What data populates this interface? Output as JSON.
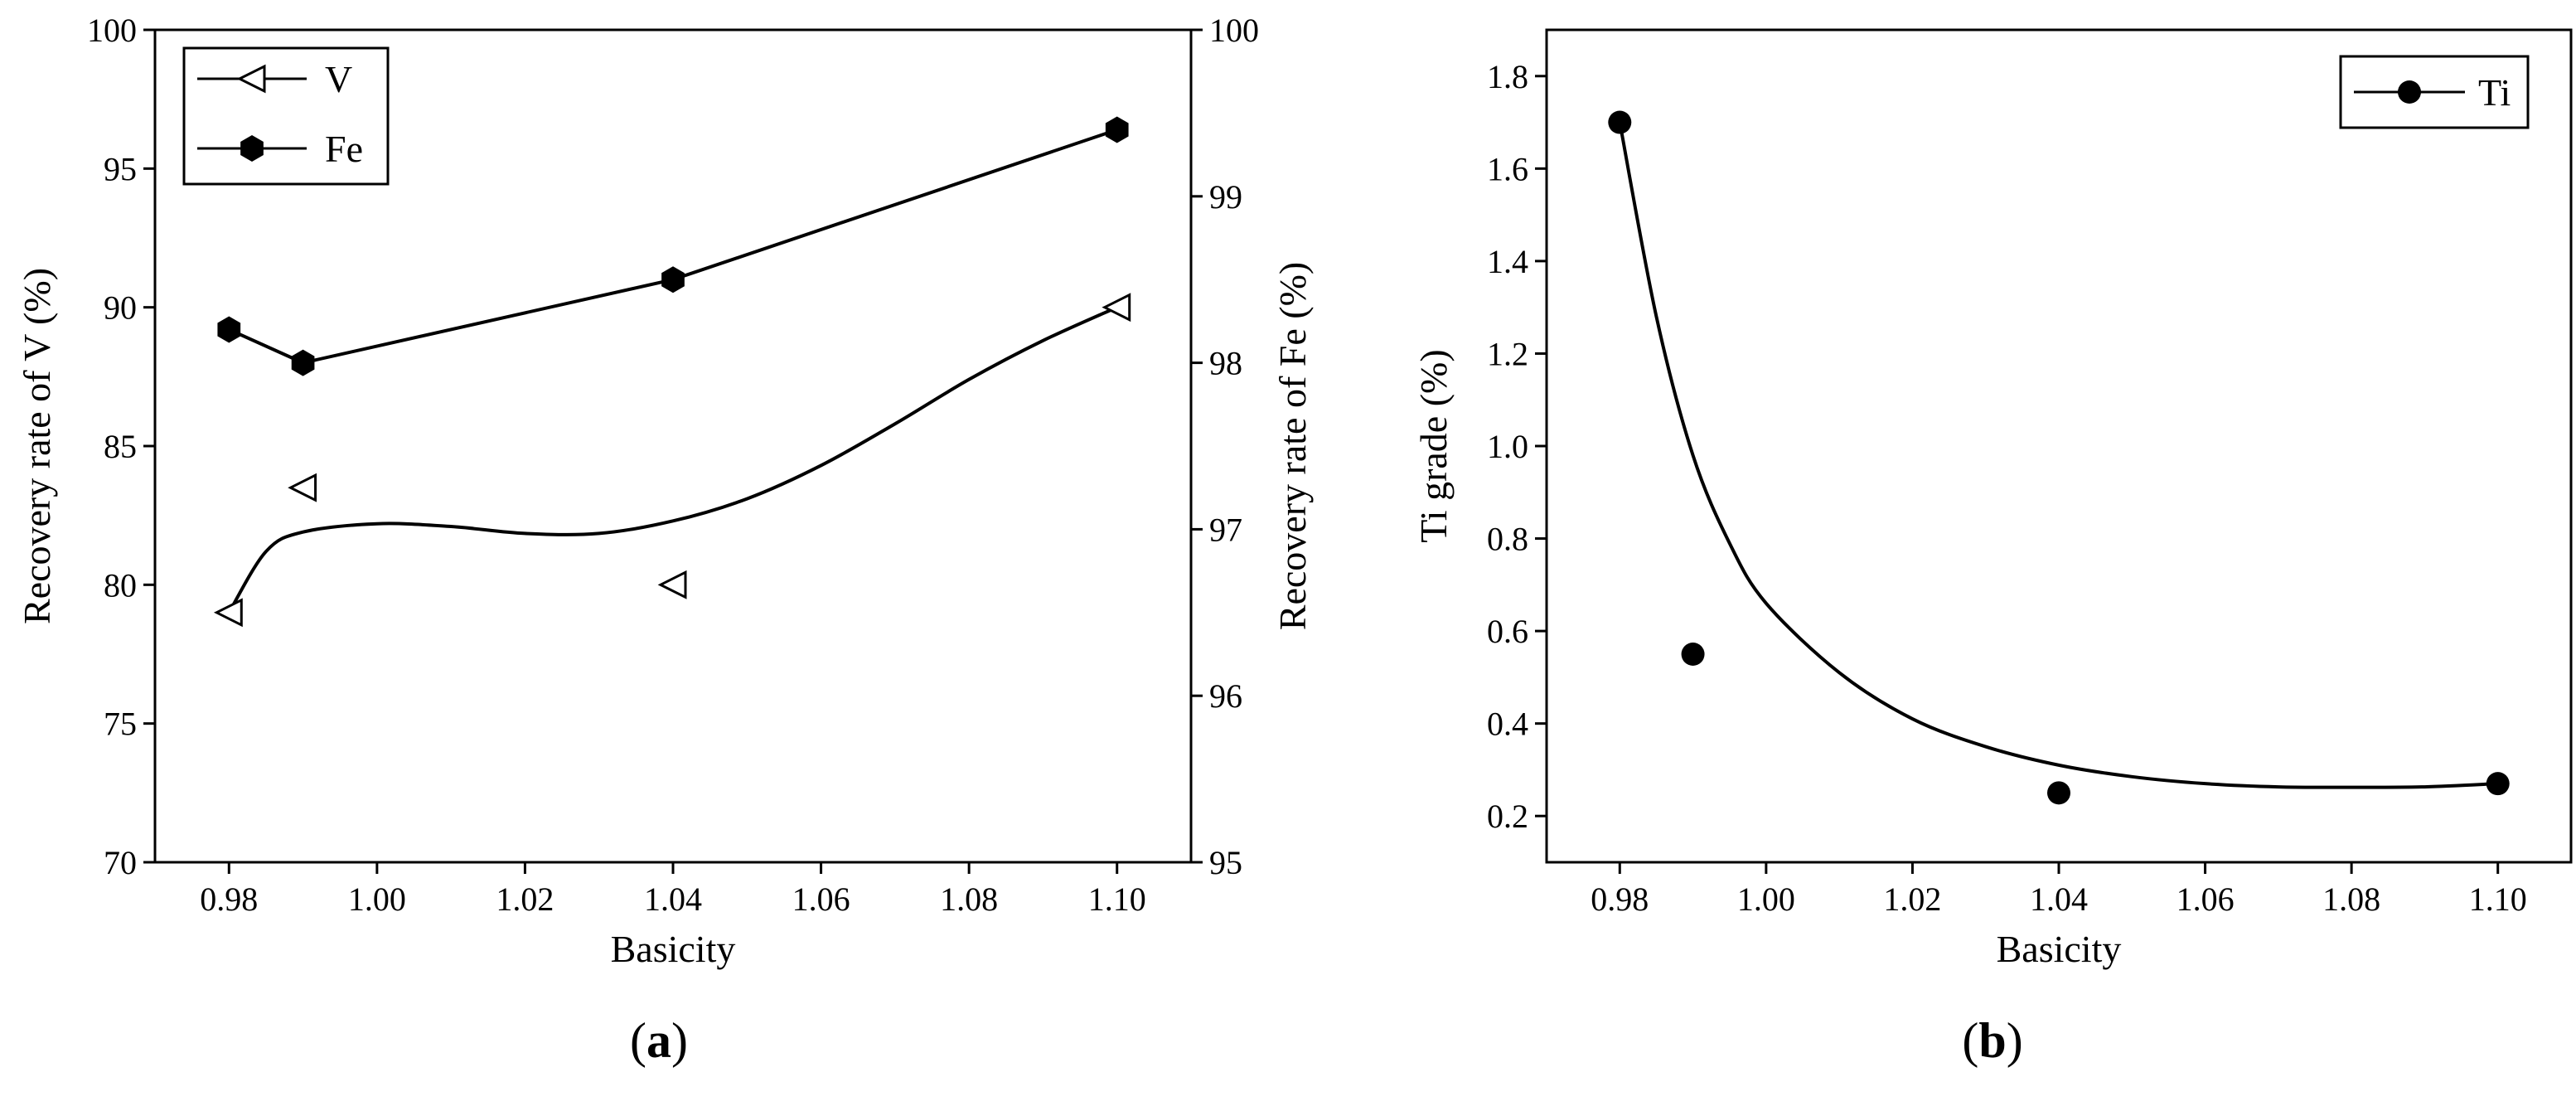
{
  "charts": [
    {
      "type": "line",
      "xlabel": "Basicity",
      "ylabel": "Recovery rate of V (%)",
      "y2label": "Recovery rate of Fe (%)",
      "caption": {
        "open": "(",
        "letter": "a",
        "close": ")"
      },
      "xlim": [
        0.97,
        1.11
      ],
      "ylim": [
        70,
        100
      ],
      "y2lim": [
        95,
        100
      ],
      "xticks": [
        "0.98",
        "1.00",
        "1.02",
        "1.04",
        "1.06",
        "1.08",
        "1.10"
      ],
      "yticks": [
        "70",
        "75",
        "80",
        "85",
        "90",
        "95",
        "100"
      ],
      "y2ticks": [
        "95",
        "96",
        "97",
        "98",
        "99",
        "100"
      ],
      "series": [
        {
          "name": "V",
          "marker": "triangle-left-open",
          "axis": "y",
          "x": [
            0.98,
            0.99,
            1.04,
            1.1
          ],
          "values": [
            79.0,
            83.5,
            80.0,
            90.0
          ],
          "fit": [
            [
              0.98,
              79.0
            ],
            [
              0.985,
              81.2
            ],
            [
              0.99,
              81.9
            ],
            [
              1.0,
              82.2
            ],
            [
              1.01,
              82.1
            ],
            [
              1.02,
              81.85
            ],
            [
              1.03,
              81.85
            ],
            [
              1.04,
              82.3
            ],
            [
              1.05,
              83.1
            ],
            [
              1.06,
              84.3
            ],
            [
              1.07,
              85.8
            ],
            [
              1.08,
              87.4
            ],
            [
              1.09,
              88.8
            ],
            [
              1.1,
              90.0
            ]
          ]
        },
        {
          "name": "Fe",
          "marker": "hexagon-filled",
          "axis": "y2",
          "x": [
            0.98,
            0.99,
            1.04,
            1.1
          ],
          "values": [
            98.2,
            98.0,
            98.5,
            99.4
          ]
        }
      ]
    },
    {
      "type": "scatter",
      "xlabel": "Basicity",
      "ylabel": "Ti grade (%)",
      "caption": {
        "open": "(",
        "letter": "b",
        "close": ")"
      },
      "xlim": [
        0.97,
        1.11
      ],
      "ylim": [
        0.1,
        1.9
      ],
      "xticks": [
        "0.98",
        "1.00",
        "1.02",
        "1.04",
        "1.06",
        "1.08",
        "1.10"
      ],
      "yticks": [
        "0.2",
        "0.4",
        "0.6",
        "0.8",
        "1.0",
        "1.2",
        "1.4",
        "1.6",
        "1.8"
      ],
      "series": [
        {
          "name": "Ti",
          "marker": "circle-filled",
          "axis": "y",
          "x": [
            0.98,
            0.99,
            1.04,
            1.1
          ],
          "values": [
            1.7,
            0.55,
            0.25,
            0.27
          ],
          "fit": [
            [
              0.98,
              1.7
            ],
            [
              0.985,
              1.28
            ],
            [
              0.99,
              0.98
            ],
            [
              0.995,
              0.79
            ],
            [
              1.0,
              0.66
            ],
            [
              1.01,
              0.51
            ],
            [
              1.02,
              0.41
            ],
            [
              1.03,
              0.35
            ],
            [
              1.04,
              0.31
            ],
            [
              1.05,
              0.285
            ],
            [
              1.06,
              0.27
            ],
            [
              1.07,
              0.263
            ],
            [
              1.08,
              0.262
            ],
            [
              1.09,
              0.263
            ],
            [
              1.1,
              0.27
            ]
          ]
        }
      ]
    }
  ]
}
